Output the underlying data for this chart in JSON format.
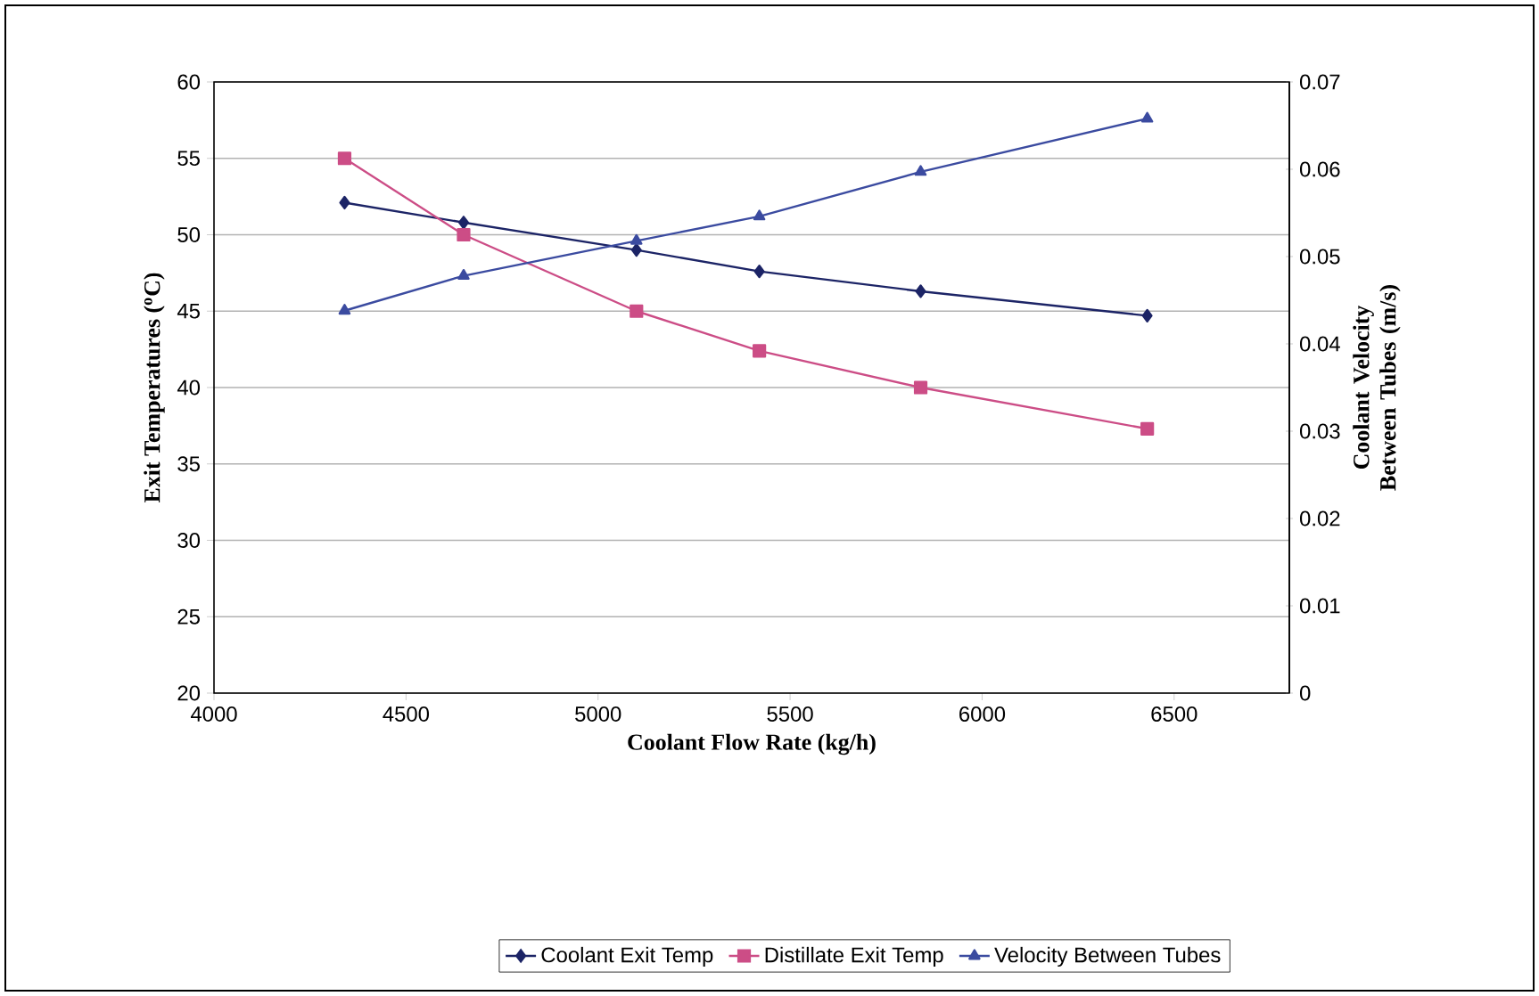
{
  "chart_data": {
    "type": "line",
    "xlabel": "Coolant Flow Rate (kg/h)",
    "ylabel": "Exit Temperatures ($^{o}$C)",
    "y2label": "Coolant Velocity Between Tubes (m/s)",
    "x": [
      4340,
      4650,
      5100,
      5420,
      5840,
      6430
    ],
    "series": [
      {
        "name": "Coolant Exit Temp",
        "color": "#1c2466",
        "marker": "diamond",
        "values": [
          52.1,
          50.8,
          49.0,
          47.6,
          46.3,
          44.7
        ]
      },
      {
        "name": "Distillate Exit Temp",
        "color": "#cc4d86",
        "marker": "square",
        "values": [
          55.0,
          50.0,
          45.0,
          42.4,
          40.0,
          37.3
        ]
      },
      {
        "name": "Velocity Between Tubes",
        "color": "#3b4ba0",
        "marker": "triangle",
        "axis": "y2",
        "values": [
          0.0438,
          0.0478,
          0.0518,
          0.0546,
          0.0597,
          0.0658
        ]
      }
    ],
    "xlim": [
      4000,
      6800
    ],
    "xticks": [
      4000,
      4500,
      5000,
      5500,
      6000,
      6500
    ],
    "ylim": [
      20,
      60
    ],
    "yticks": [
      20,
      25,
      30,
      35,
      40,
      45,
      50,
      55,
      60
    ],
    "y2lim": [
      0,
      0.07
    ],
    "y2ticks": [
      0,
      0.01,
      0.02,
      0.03,
      0.04,
      0.05,
      0.06,
      0.07
    ],
    "grid": "y",
    "legend": "bottom",
    "line_style": "solid"
  }
}
